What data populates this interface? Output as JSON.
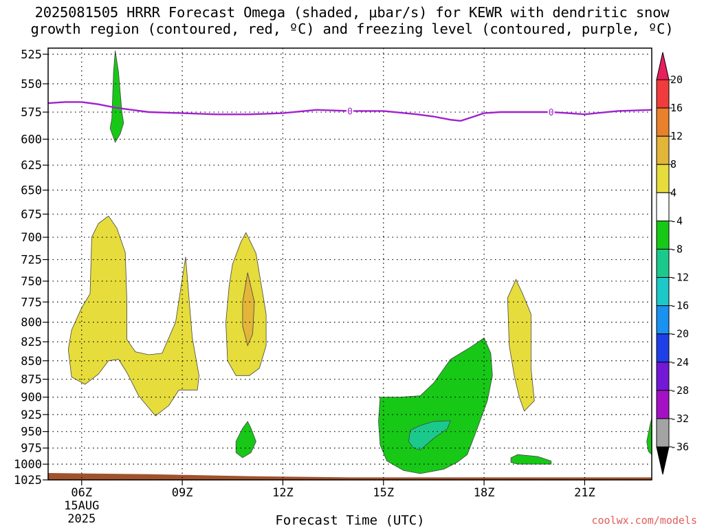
{
  "chart_data": {
    "type": "contour",
    "title": [
      "2025081505 HRRR Forecast Omega (shaded, μbar/s) for KEWR with dendritic snow",
      "growth region (contoured, red, ºC) and freezing level (contoured, purple, ºC)"
    ],
    "xlabel": "Forecast Time (UTC)",
    "x_ticks": [
      {
        "hour": 6,
        "label": "06Z",
        "sub": [
          "15AUG",
          "2025"
        ]
      },
      {
        "hour": 9,
        "label": "09Z"
      },
      {
        "hour": 12,
        "label": "12Z"
      },
      {
        "hour": 15,
        "label": "15Z"
      },
      {
        "hour": 18,
        "label": "18Z"
      },
      {
        "hour": 21,
        "label": "21Z"
      }
    ],
    "x_range_hours": [
      5.0,
      23.0
    ],
    "y_ticks": [
      525,
      550,
      575,
      600,
      625,
      650,
      675,
      700,
      725,
      750,
      775,
      800,
      825,
      850,
      875,
      900,
      925,
      950,
      975,
      1000,
      1025
    ],
    "y_range_mb": [
      520,
      1025
    ],
    "y_scale": "log-pressure",
    "grid": "dotted",
    "colorbar": {
      "labels": [
        "20",
        "16",
        "12",
        "8",
        "4",
        "-4",
        "-8",
        "-12",
        "-16",
        "-20",
        "-24",
        "-28",
        "-32",
        "-36"
      ],
      "colors": [
        "#e81f5c",
        "#f03c3c",
        "#e9812c",
        "#e3b538",
        "#e6dc3c",
        "#ffffff",
        "#17c817",
        "#1cc98c",
        "#1cc9c8",
        "#1a92f0",
        "#1f3fe6",
        "#7218d6",
        "#a411c5",
        "#a3a3a3",
        "#000000"
      ]
    },
    "freezing_level": {
      "color": "#a020d0",
      "label": "0",
      "points": [
        [
          5.0,
          567
        ],
        [
          5.5,
          566
        ],
        [
          6.0,
          566
        ],
        [
          6.5,
          568
        ],
        [
          7.0,
          571
        ],
        [
          7.5,
          573
        ],
        [
          8.0,
          575
        ],
        [
          9.0,
          576
        ],
        [
          10.0,
          577
        ],
        [
          11.0,
          577
        ],
        [
          12.0,
          576
        ],
        [
          13.0,
          573
        ],
        [
          14.0,
          574
        ],
        [
          15.0,
          574
        ],
        [
          16.0,
          577
        ],
        [
          16.5,
          579
        ],
        [
          17.0,
          582
        ],
        [
          17.3,
          583
        ],
        [
          17.6,
          580
        ],
        [
          18.0,
          576
        ],
        [
          18.5,
          575
        ],
        [
          19.5,
          575
        ],
        [
          20.0,
          575
        ],
        [
          20.5,
          576
        ],
        [
          21.0,
          577
        ],
        [
          22.0,
          574
        ],
        [
          23.0,
          573
        ]
      ],
      "label_hours": [
        14.0,
        20.0
      ]
    },
    "omega_regions": [
      {
        "value_class": "-8 to -4",
        "color": "#17c817",
        "points": [
          [
            6.9,
            581
          ],
          [
            6.95,
            540
          ],
          [
            7.0,
            522
          ],
          [
            7.1,
            540
          ],
          [
            7.2,
            575
          ],
          [
            7.25,
            585
          ],
          [
            7.15,
            595
          ],
          [
            7.0,
            603
          ],
          [
            6.85,
            590
          ]
        ]
      },
      {
        "value_class": "4 to 8",
        "color": "#e6dc3c",
        "points": [
          [
            6.3,
            700
          ],
          [
            6.5,
            685
          ],
          [
            6.8,
            677
          ],
          [
            7.05,
            690
          ],
          [
            7.3,
            717
          ],
          [
            7.35,
            775
          ],
          [
            7.35,
            822
          ],
          [
            7.6,
            838
          ],
          [
            8.0,
            842
          ],
          [
            8.4,
            840
          ],
          [
            8.8,
            800
          ],
          [
            9.1,
            722
          ],
          [
            9.3,
            820
          ],
          [
            9.5,
            870
          ],
          [
            9.45,
            890
          ],
          [
            8.9,
            890
          ],
          [
            8.6,
            912
          ],
          [
            8.2,
            927
          ],
          [
            7.7,
            898
          ],
          [
            7.35,
            866
          ],
          [
            7.1,
            848
          ],
          [
            6.8,
            850
          ],
          [
            6.5,
            868
          ],
          [
            6.1,
            882
          ],
          [
            5.7,
            872
          ],
          [
            5.6,
            835
          ],
          [
            5.7,
            810
          ],
          [
            6.0,
            782
          ],
          [
            6.25,
            765
          ]
        ]
      },
      {
        "value_class": "4 to 8",
        "color": "#e6dc3c",
        "points": [
          [
            10.5,
            730
          ],
          [
            10.75,
            705
          ],
          [
            10.9,
            695
          ],
          [
            11.2,
            718
          ],
          [
            11.5,
            790
          ],
          [
            11.5,
            830
          ],
          [
            11.3,
            860
          ],
          [
            11.0,
            870
          ],
          [
            10.6,
            870
          ],
          [
            10.35,
            850
          ],
          [
            10.3,
            800
          ],
          [
            10.4,
            755
          ]
        ]
      },
      {
        "value_class": "8 to 12",
        "color": "#e3b538",
        "points": [
          [
            10.8,
            775
          ],
          [
            10.95,
            740
          ],
          [
            11.15,
            775
          ],
          [
            11.1,
            815
          ],
          [
            10.95,
            830
          ],
          [
            10.8,
            805
          ]
        ]
      },
      {
        "value_class": "-8 to -4",
        "color": "#17c817",
        "points": [
          [
            10.6,
            965
          ],
          [
            10.8,
            945
          ],
          [
            10.95,
            935
          ],
          [
            11.05,
            945
          ],
          [
            11.2,
            965
          ],
          [
            11.05,
            982
          ],
          [
            10.8,
            990
          ],
          [
            10.6,
            982
          ]
        ]
      },
      {
        "value_class": "-8 to -4",
        "color": "#17c817",
        "points": [
          [
            14.9,
            900
          ],
          [
            15.5,
            900
          ],
          [
            16.1,
            898
          ],
          [
            16.5,
            880
          ],
          [
            17.0,
            848
          ],
          [
            17.6,
            832
          ],
          [
            18.0,
            820
          ],
          [
            18.2,
            840
          ],
          [
            18.25,
            870
          ],
          [
            18.1,
            905
          ],
          [
            17.8,
            945
          ],
          [
            17.5,
            985
          ],
          [
            17.2,
            997
          ],
          [
            16.8,
            1008
          ],
          [
            16.1,
            1015
          ],
          [
            15.6,
            1010
          ],
          [
            15.1,
            995
          ],
          [
            14.9,
            970
          ],
          [
            14.85,
            935
          ]
        ]
      },
      {
        "value_class": "-12 to -8",
        "color": "#1cc98c",
        "points": [
          [
            15.8,
            948
          ],
          [
            16.1,
            941
          ],
          [
            16.5,
            935
          ],
          [
            17.0,
            934
          ],
          [
            16.9,
            946
          ],
          [
            16.5,
            960
          ],
          [
            16.1,
            978
          ],
          [
            15.9,
            975
          ],
          [
            15.75,
            965
          ]
        ]
      },
      {
        "value_class": "4 to 8",
        "color": "#e6dc3c",
        "points": [
          [
            18.7,
            770
          ],
          [
            18.95,
            748
          ],
          [
            19.15,
            765
          ],
          [
            19.4,
            790
          ],
          [
            19.4,
            860
          ],
          [
            19.5,
            905
          ],
          [
            19.2,
            920
          ],
          [
            19.05,
            900
          ],
          [
            18.9,
            870
          ],
          [
            18.75,
            830
          ]
        ]
      },
      {
        "value_class": "-8 to -4",
        "color": "#17c817",
        "points": [
          [
            18.8,
            990
          ],
          [
            19.0,
            985
          ],
          [
            19.6,
            988
          ],
          [
            20.0,
            995
          ],
          [
            20.0,
            1000
          ],
          [
            19.0,
            1000
          ],
          [
            18.8,
            997
          ]
        ]
      },
      {
        "value_class": "-8 to -4",
        "color": "#17c817",
        "points": [
          [
            22.85,
            965
          ],
          [
            22.95,
            940
          ],
          [
            23.0,
            930
          ],
          [
            23.0,
            985
          ],
          [
            22.9,
            980
          ]
        ]
      }
    ],
    "terrain": {
      "color": "#a0522d",
      "points": [
        [
          5.0,
          1014
        ],
        [
          8.0,
          1016
        ],
        [
          11.0,
          1019
        ],
        [
          14.0,
          1021
        ],
        [
          23.0,
          1021
        ]
      ]
    }
  },
  "credit": "coolwx.com/models"
}
